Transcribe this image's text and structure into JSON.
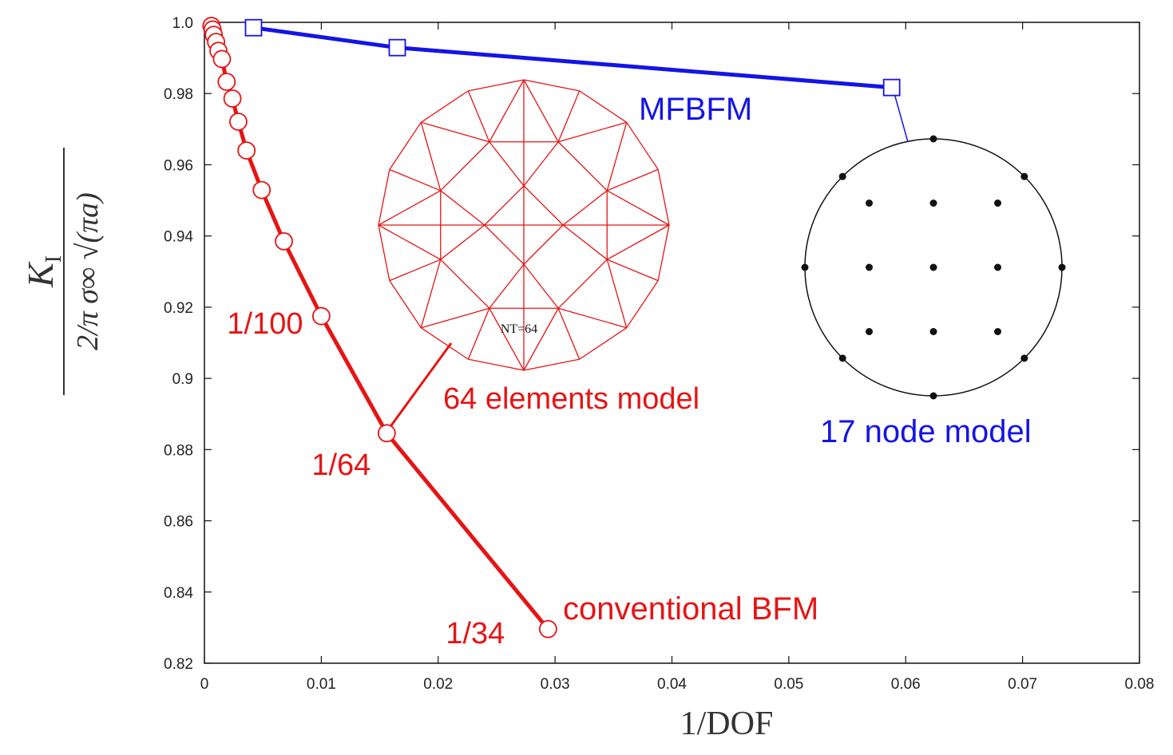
{
  "chart_data": {
    "type": "line",
    "xlabel": "1/DOF",
    "ylabel": {
      "numerator": "K",
      "numerator_sub": "I",
      "denominator": "2/π σ∞ √(πa)"
    },
    "xlim": [
      0,
      0.08
    ],
    "ylim": [
      0.82,
      1.0
    ],
    "x_ticks": [
      0,
      0.01,
      0.02,
      0.03,
      0.04,
      0.05,
      0.06,
      0.07,
      0.08
    ],
    "x_tick_labels": [
      "0",
      "0.01",
      "0.02",
      "0.03",
      "0.04",
      "0.05",
      "0.06",
      "0.07",
      "0.08"
    ],
    "y_ticks": [
      0.82,
      0.84,
      0.86,
      0.88,
      0.9,
      0.92,
      0.94,
      0.96,
      0.98,
      1.0
    ],
    "y_tick_labels": [
      "0.82",
      "0.84",
      "0.86",
      "0.88",
      "0.9",
      "0.92",
      "0.94",
      "0.96",
      "0.98",
      "1.0"
    ],
    "grid": false,
    "legend": "none",
    "series": [
      {
        "name": "MFBFM",
        "color": "#1414e6",
        "marker": "open-square",
        "points": [
          {
            "x": 0.0042,
            "y": 0.9985
          },
          {
            "x": 0.0165,
            "y": 0.9929
          },
          {
            "x": 0.0588,
            "y": 0.9817
          }
        ]
      },
      {
        "name": "conventional BFM",
        "color": "#e61414",
        "marker": "open-circle",
        "points": [
          {
            "x": 0.0006,
            "y": 0.999
          },
          {
            "x": 0.0007,
            "y": 0.998
          },
          {
            "x": 0.0008,
            "y": 0.9965
          },
          {
            "x": 0.001,
            "y": 0.9945
          },
          {
            "x": 0.0012,
            "y": 0.992
          },
          {
            "x": 0.0015,
            "y": 0.9897
          },
          {
            "x": 0.0019,
            "y": 0.9833
          },
          {
            "x": 0.0024,
            "y": 0.9786
          },
          {
            "x": 0.0029,
            "y": 0.9721
          },
          {
            "x": 0.0036,
            "y": 0.964
          },
          {
            "x": 0.0049,
            "y": 0.9529
          },
          {
            "x": 0.0068,
            "y": 0.9385
          },
          {
            "x": 0.01,
            "y": 0.9175
          },
          {
            "x": 0.0156,
            "y": 0.8846
          },
          {
            "x": 0.0294,
            "y": 0.8296
          }
        ]
      }
    ],
    "point_labels": [
      {
        "text": "1/100",
        "x": 0.01,
        "y": 0.9175
      },
      {
        "text": "1/64",
        "x": 0.0156,
        "y": 0.8846
      },
      {
        "text": "1/34",
        "x": 0.0294,
        "y": 0.8296
      }
    ],
    "annotations": {
      "mfbfm_label": "MFBFM",
      "bfm_label": "conventional BFM",
      "elements_model_label": "64 elements model",
      "node_model_label": "17 node model",
      "mesh_inset_label": "NT=64"
    }
  }
}
